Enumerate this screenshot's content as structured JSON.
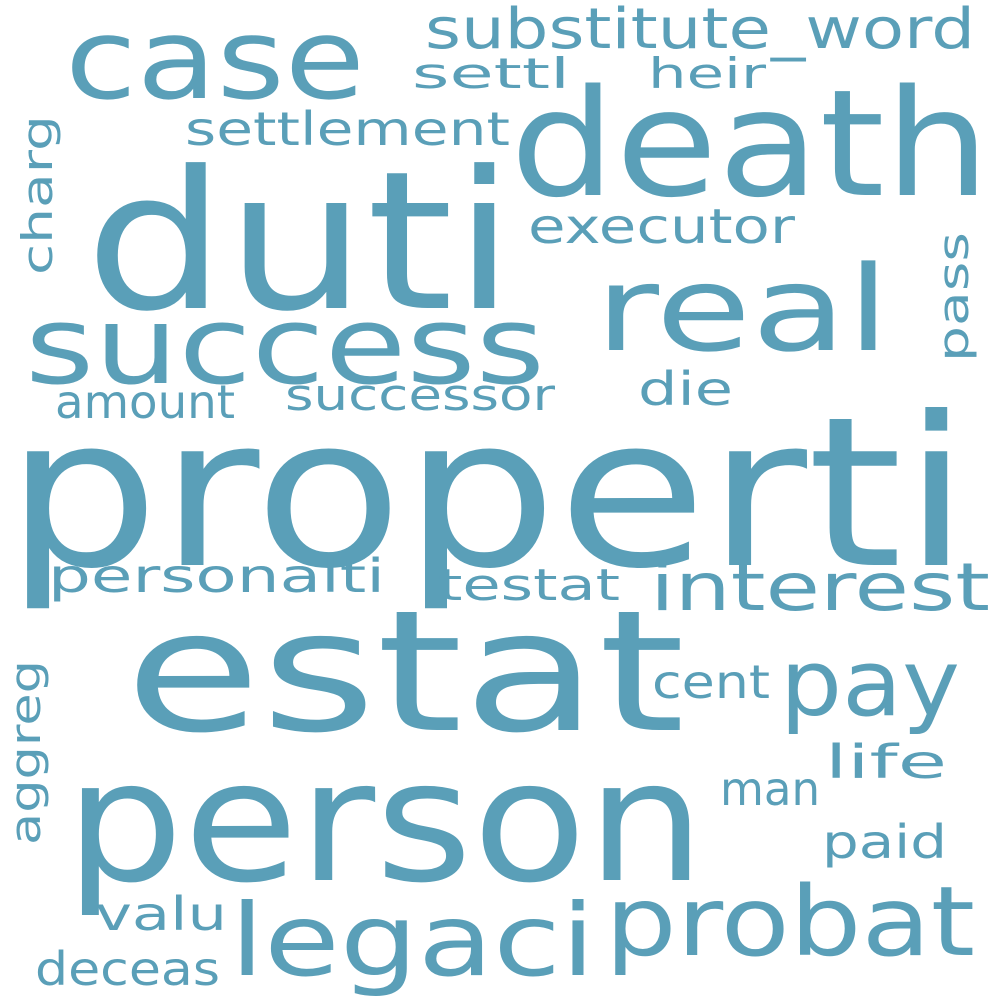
{
  "word_cloud": {
    "color": "#5a9fb8",
    "background": "#ffffff",
    "words": [
      {
        "text": "properti"
      },
      {
        "text": "duti"
      },
      {
        "text": "estat"
      },
      {
        "text": "person"
      },
      {
        "text": "death"
      },
      {
        "text": "success"
      },
      {
        "text": "case"
      },
      {
        "text": "real"
      },
      {
        "text": "legaci"
      },
      {
        "text": "probat"
      },
      {
        "text": "interest"
      },
      {
        "text": "pay"
      },
      {
        "text": "substitute_word"
      },
      {
        "text": "settlement"
      },
      {
        "text": "executor"
      },
      {
        "text": "personalti"
      },
      {
        "text": "successor"
      },
      {
        "text": "amount"
      },
      {
        "text": "settl"
      },
      {
        "text": "heir"
      },
      {
        "text": "die"
      },
      {
        "text": "testat"
      },
      {
        "text": "cent"
      },
      {
        "text": "life"
      },
      {
        "text": "man"
      },
      {
        "text": "paid"
      },
      {
        "text": "valu"
      },
      {
        "text": "deceas"
      },
      {
        "text": "charg"
      },
      {
        "text": "pass"
      },
      {
        "text": "aggreg"
      }
    ]
  }
}
